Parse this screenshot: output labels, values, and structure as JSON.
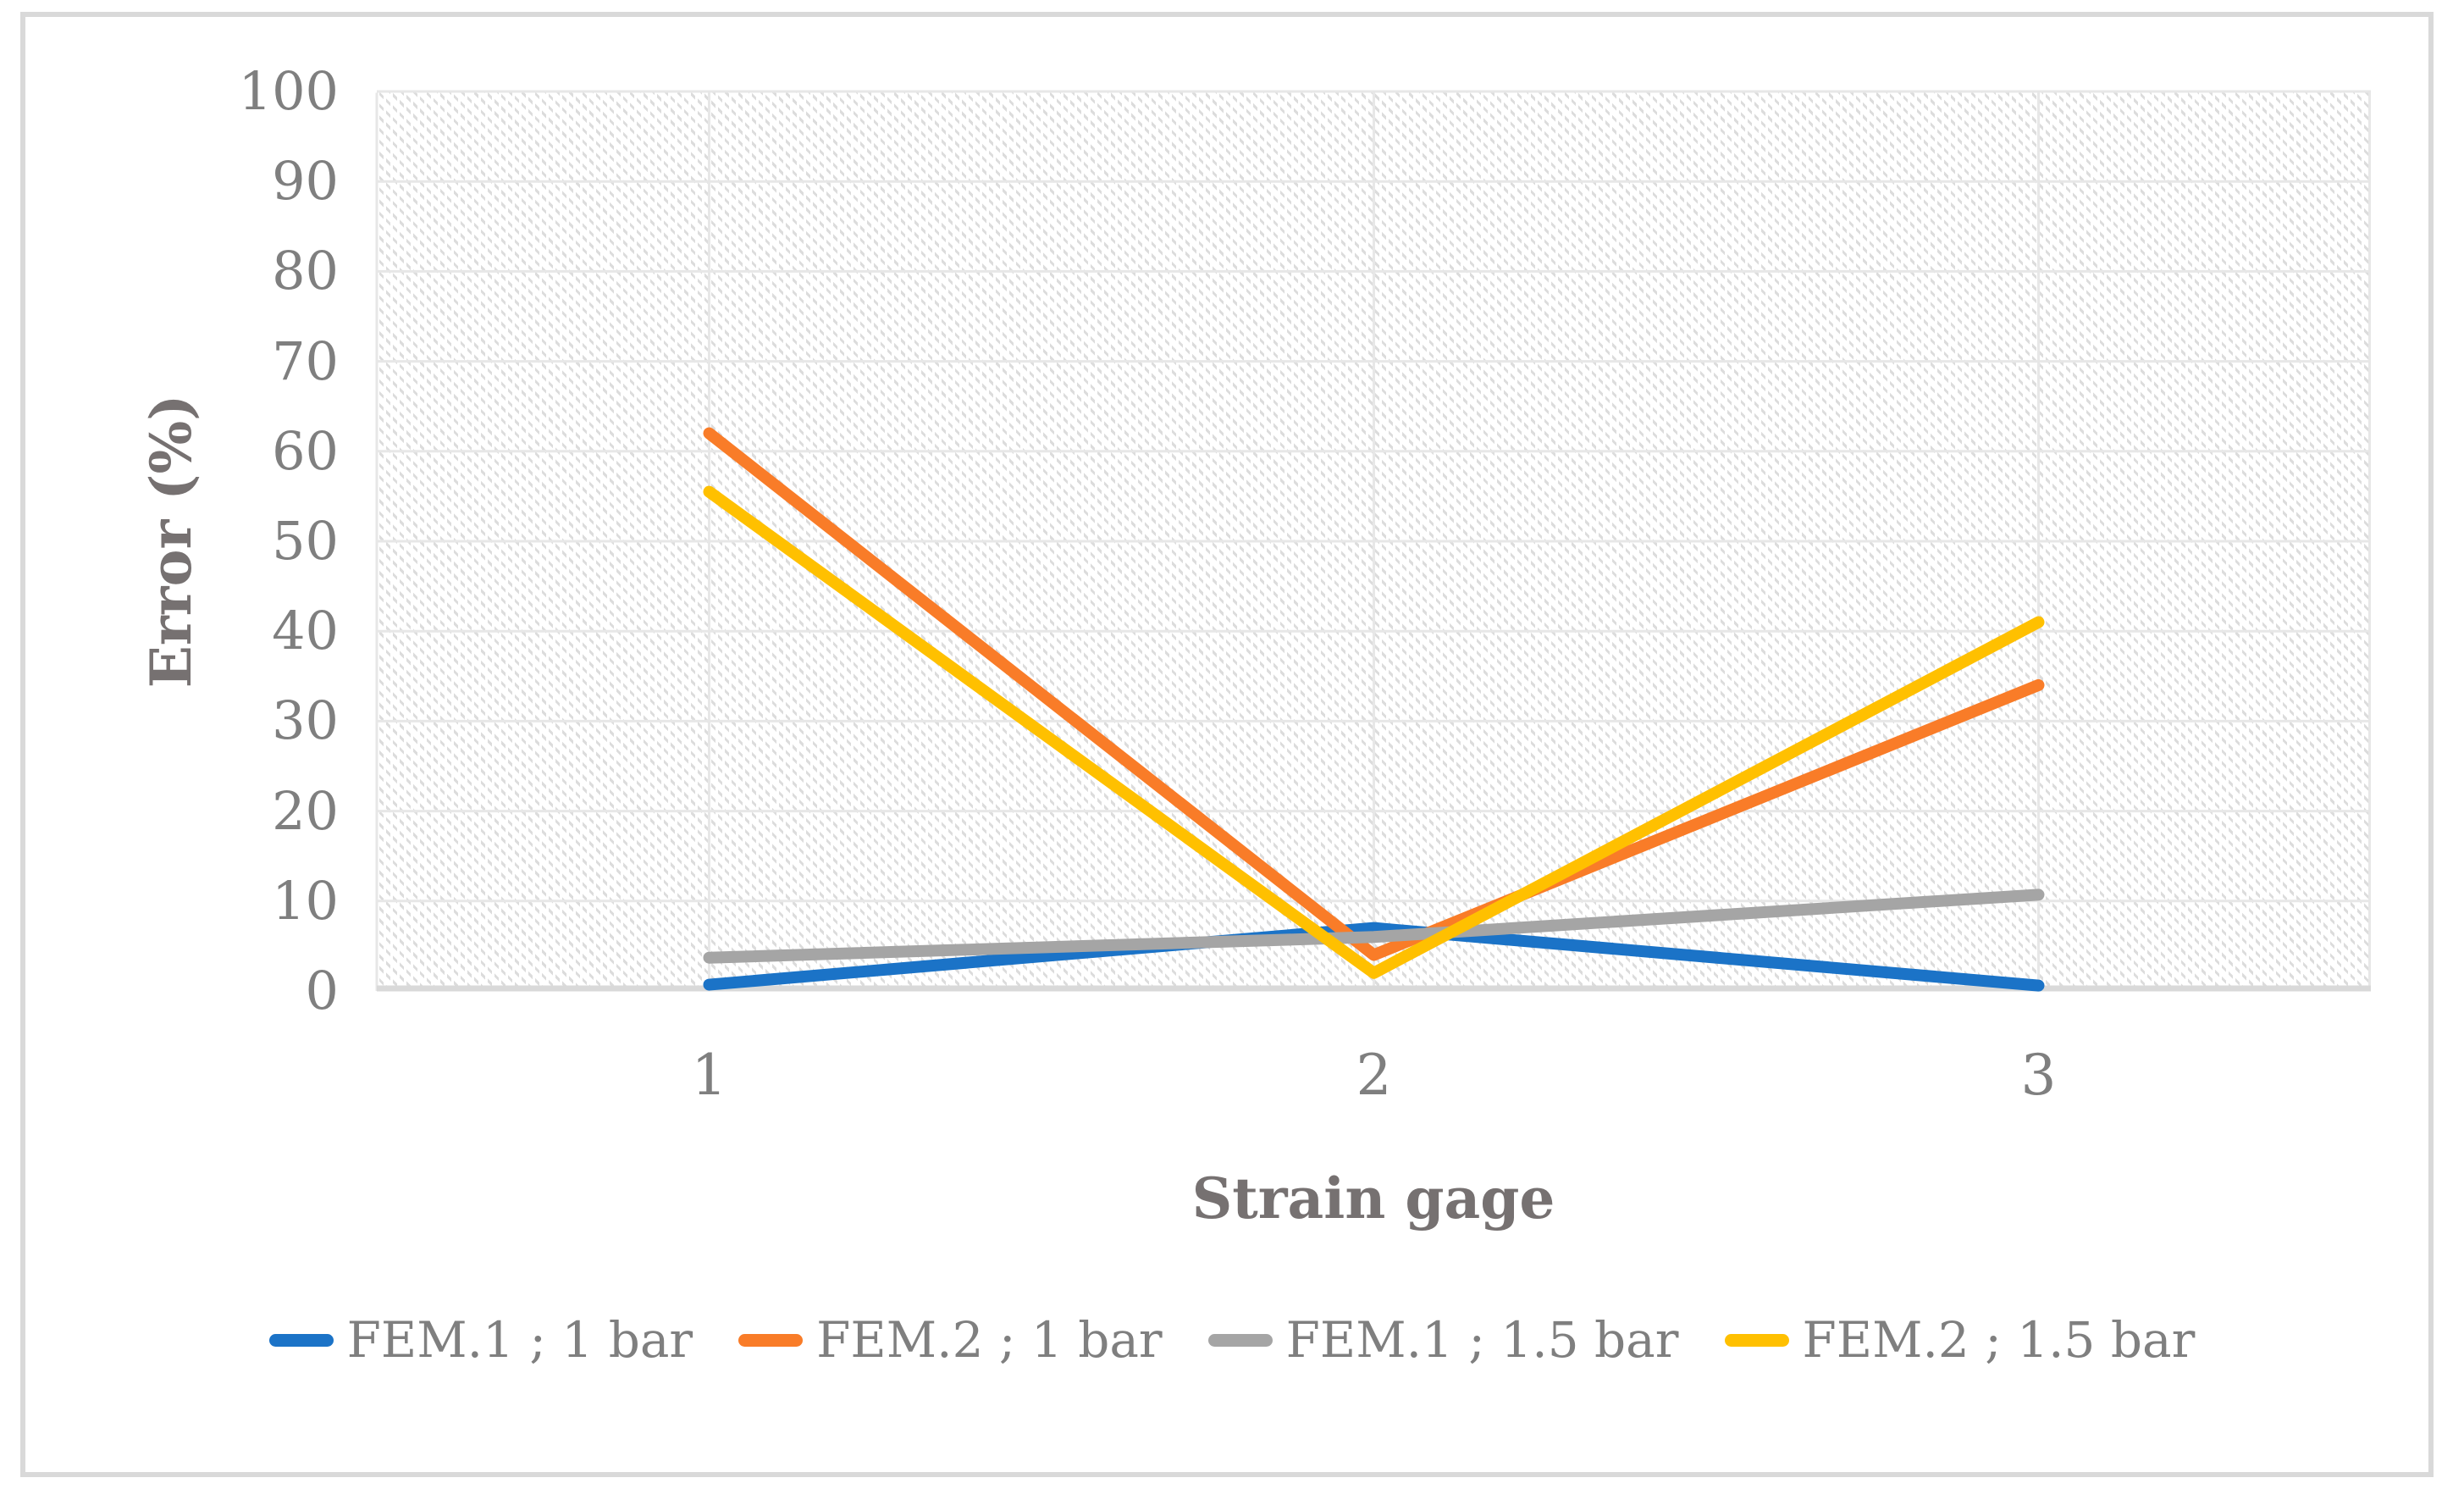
{
  "chart_data": {
    "type": "line",
    "title": "",
    "xlabel": "Strain gage",
    "ylabel": "Error (%)",
    "categories": [
      "1",
      "2",
      "3"
    ],
    "yticks": [
      0,
      10,
      20,
      30,
      40,
      50,
      60,
      70,
      80,
      90,
      100
    ],
    "ylim": [
      0,
      100
    ],
    "grid": true,
    "plot_background": "light-diagonal-hatch",
    "legend_position": "bottom",
    "series": [
      {
        "name": "FEM.1 ; 1 bar",
        "color": "#1B73C7",
        "values": [
          0.7,
          7,
          0.6
        ]
      },
      {
        "name": "FEM.2 ; 1 bar",
        "color": "#F97C28",
        "values": [
          62,
          4,
          34
        ]
      },
      {
        "name": "FEM.1 ; 1.5 bar",
        "color": "#A5A5A5",
        "values": [
          3.7,
          6,
          10.7
        ]
      },
      {
        "name": "FEM.2 ; 1.5 bar",
        "color": "#FFC000",
        "values": [
          55.5,
          2,
          41
        ]
      }
    ]
  },
  "colors": {
    "axis_text": "#7F7F7F",
    "axis_title_text": "#767171",
    "gridline": "#E7E7E7",
    "baseline": "#D9D9D9",
    "frame_border": "#D9D9D9",
    "hatch": "#DCDCDC"
  }
}
